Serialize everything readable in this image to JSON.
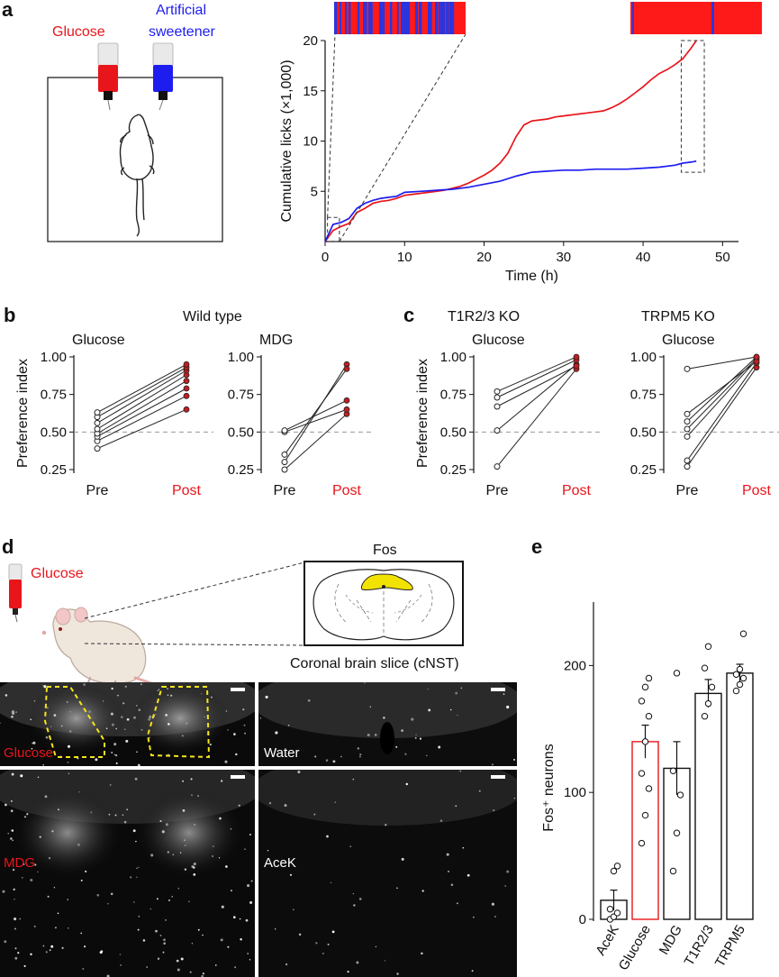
{
  "colors": {
    "glucose": "#e8151b",
    "sweetener": "#1d1df0",
    "dot_red": "#c41d20",
    "bar_red": "#e8151b",
    "axis": "#111111",
    "yellow": "#f2e200",
    "dashed_yellow": "#f7e51a",
    "sugar_band": "#ff1a1a",
    "sweet_band": "#2a35e0"
  },
  "panel_labels": {
    "a": "a",
    "b": "b",
    "c": "c",
    "d": "d",
    "e": "e"
  },
  "panel_a": {
    "bottle_left": "Glucose",
    "bottle_right_line1": "Artificial",
    "bottle_right_line2": "sweetener"
  },
  "panel_b": {
    "title": "Wild type"
  },
  "panel_c": {
    "title_left": "T1R2/3 KO",
    "title_right": "TRPM5 KO"
  },
  "panel_d": {
    "fos": "Fos",
    "bottle": "Glucose",
    "slice_caption": "Coronal brain slice (cNST)",
    "image_labels": [
      "Glucose",
      "Water",
      "MDG",
      "AceK"
    ]
  },
  "chart_data": [
    {
      "id": "a",
      "type": "line",
      "xlabel": "Time (h)",
      "ylabel": "Cumulative licks (×1,000)",
      "xlim": [
        0,
        52
      ],
      "ylim": [
        0,
        20
      ],
      "xticks": [
        0,
        10,
        20,
        30,
        40,
        50
      ],
      "yticks": [
        5,
        10,
        15,
        20
      ],
      "series": [
        {
          "color": "#e8151b",
          "x": [
            0,
            1,
            2,
            3,
            4,
            5,
            6,
            7,
            8,
            9,
            10,
            11,
            12,
            13,
            14,
            15,
            16,
            17,
            18,
            19,
            20,
            21,
            22,
            23,
            24,
            25,
            26,
            27,
            28,
            29,
            30,
            31,
            32,
            33,
            34,
            35,
            36,
            37,
            38,
            39,
            40,
            41,
            42,
            43,
            44,
            45,
            46,
            46.7
          ],
          "y": [
            0,
            1.1,
            1.5,
            1.8,
            2.9,
            3.3,
            3.8,
            4.0,
            4.1,
            4.3,
            4.6,
            4.7,
            4.8,
            4.9,
            5.0,
            5.1,
            5.3,
            5.5,
            5.8,
            6.2,
            6.6,
            7.1,
            7.8,
            8.8,
            10.4,
            11.6,
            12.0,
            12.1,
            12.2,
            12.4,
            12.5,
            12.6,
            12.7,
            12.8,
            12.9,
            13.0,
            13.3,
            13.7,
            14.2,
            14.8,
            15.4,
            16.1,
            16.7,
            17.1,
            17.6,
            18.2,
            19.2,
            20.0
          ]
        },
        {
          "color": "#1d1df0",
          "x": [
            0,
            1,
            2,
            3,
            4,
            5,
            6,
            7,
            8,
            9,
            10,
            12,
            14,
            16,
            18,
            20,
            22,
            24,
            26,
            28,
            30,
            32,
            34,
            36,
            38,
            40,
            42,
            44,
            45,
            46,
            46.7
          ],
          "y": [
            0,
            1.7,
            1.9,
            2.3,
            3.3,
            3.8,
            4.1,
            4.3,
            4.4,
            4.5,
            4.9,
            5.0,
            5.1,
            5.2,
            5.4,
            5.7,
            6.0,
            6.5,
            6.9,
            7.0,
            7.1,
            7.1,
            7.2,
            7.2,
            7.2,
            7.3,
            7.4,
            7.6,
            7.8,
            7.9,
            8.0
          ]
        }
      ]
    },
    {
      "id": "b-glucose",
      "type": "scatter",
      "title": "Glucose",
      "ylabel": "Preference index",
      "categories": [
        "Pre",
        "Post"
      ],
      "ylim": [
        0.25,
        1.0
      ],
      "yticks": [
        "0.25",
        "0.50",
        "0.75",
        "1.00"
      ],
      "pairs": [
        [
          0.39,
          0.65
        ],
        [
          0.44,
          0.74
        ],
        [
          0.47,
          0.79
        ],
        [
          0.49,
          0.84
        ],
        [
          0.52,
          0.88
        ],
        [
          0.56,
          0.91
        ],
        [
          0.6,
          0.93
        ],
        [
          0.63,
          0.95
        ]
      ]
    },
    {
      "id": "b-mdg",
      "type": "scatter",
      "title": "MDG",
      "categories": [
        "Pre",
        "Post"
      ],
      "ylim": [
        0.25,
        1.0
      ],
      "yticks": [
        "0.25",
        "0.50",
        "0.75",
        "1.00"
      ],
      "pairs": [
        [
          0.25,
          0.62
        ],
        [
          0.3,
          0.95
        ],
        [
          0.35,
          0.92
        ],
        [
          0.5,
          0.65
        ],
        [
          0.51,
          0.71
        ]
      ]
    },
    {
      "id": "c-t1r23",
      "type": "scatter",
      "title": "Glucose",
      "ylabel": "Preference index",
      "categories": [
        "Pre",
        "Post"
      ],
      "ylim": [
        0.25,
        1.0
      ],
      "yticks": [
        "0.25",
        "0.50",
        "0.75",
        "1.00"
      ],
      "pairs": [
        [
          0.27,
          0.92
        ],
        [
          0.51,
          0.95
        ],
        [
          0.67,
          0.94
        ],
        [
          0.73,
          0.98
        ],
        [
          0.77,
          1.0
        ]
      ]
    },
    {
      "id": "c-trpm5",
      "type": "scatter",
      "title": "Glucose",
      "categories": [
        "Pre",
        "Post"
      ],
      "ylim": [
        0.25,
        1.0
      ],
      "yticks": [
        "0.25",
        "0.50",
        "0.75",
        "1.00"
      ],
      "pairs": [
        [
          0.27,
          0.93
        ],
        [
          0.31,
          0.96
        ],
        [
          0.47,
          0.98
        ],
        [
          0.52,
          0.99
        ],
        [
          0.57,
          1.0
        ],
        [
          0.62,
          0.97
        ],
        [
          0.92,
          1.0
        ]
      ]
    },
    {
      "id": "e",
      "type": "bar",
      "ylabel": "Fos⁺ neurons",
      "ylim": [
        0,
        250
      ],
      "yticks": [
        0,
        100,
        200
      ],
      "categories": [
        "AceK",
        "Glucose",
        "MDG",
        "T1R2/3",
        "TRPM5"
      ],
      "values": [
        15,
        140,
        119,
        178,
        194
      ],
      "errors": [
        8,
        13,
        21,
        11,
        7
      ],
      "highlight": "Glucose",
      "points": [
        [
          0,
          2,
          5,
          8,
          38,
          42
        ],
        [
          60,
          82,
          103,
          115,
          140,
          160,
          172,
          183,
          190
        ],
        [
          38,
          68,
          98,
          117,
          194
        ],
        [
          160,
          170,
          183,
          198,
          215
        ],
        [
          180,
          185,
          190,
          193,
          197,
          225
        ]
      ]
    }
  ]
}
